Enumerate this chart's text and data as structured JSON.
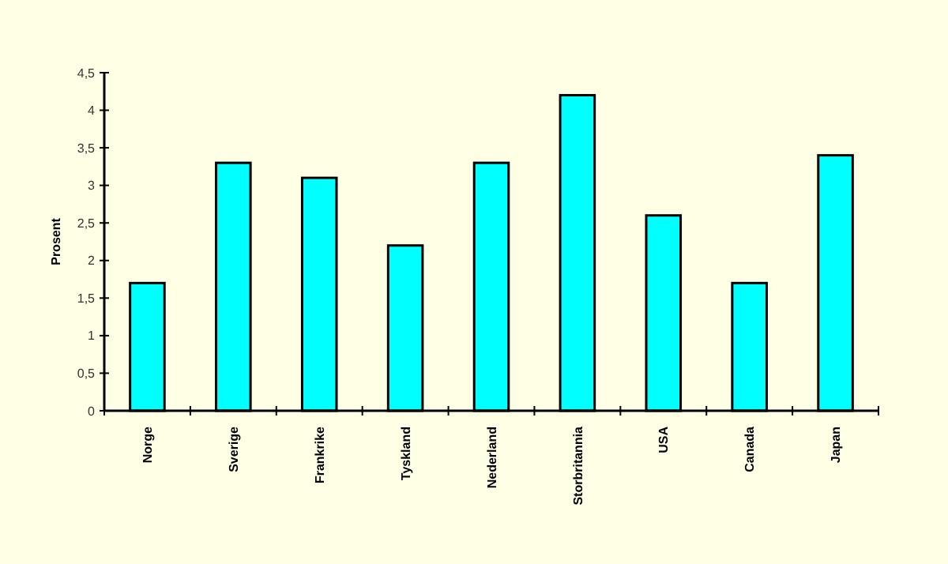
{
  "chart_data": {
    "type": "bar",
    "ylabel": "Prosent",
    "categories": [
      "Norge",
      "Sverige",
      "Frankrike",
      "Tyskland",
      "Nederland",
      "Storbritannia",
      "USA",
      "Canada",
      "Japan"
    ],
    "values": [
      1.7,
      3.3,
      3.1,
      2.2,
      3.3,
      4.2,
      2.6,
      1.7,
      3.4
    ],
    "color": "#00ffff",
    "ylim": [
      0,
      4.5
    ],
    "yticks": [
      0,
      {
        "value": 0.5,
        "label": "0,5"
      },
      1,
      {
        "value": 1.5,
        "label": "1,5"
      },
      2,
      {
        "value": 2.5,
        "label": "2,5"
      },
      3,
      {
        "value": 3.5,
        "label": "3,5"
      },
      4,
      {
        "value": 4.5,
        "label": "4,5"
      }
    ],
    "grid": false
  }
}
